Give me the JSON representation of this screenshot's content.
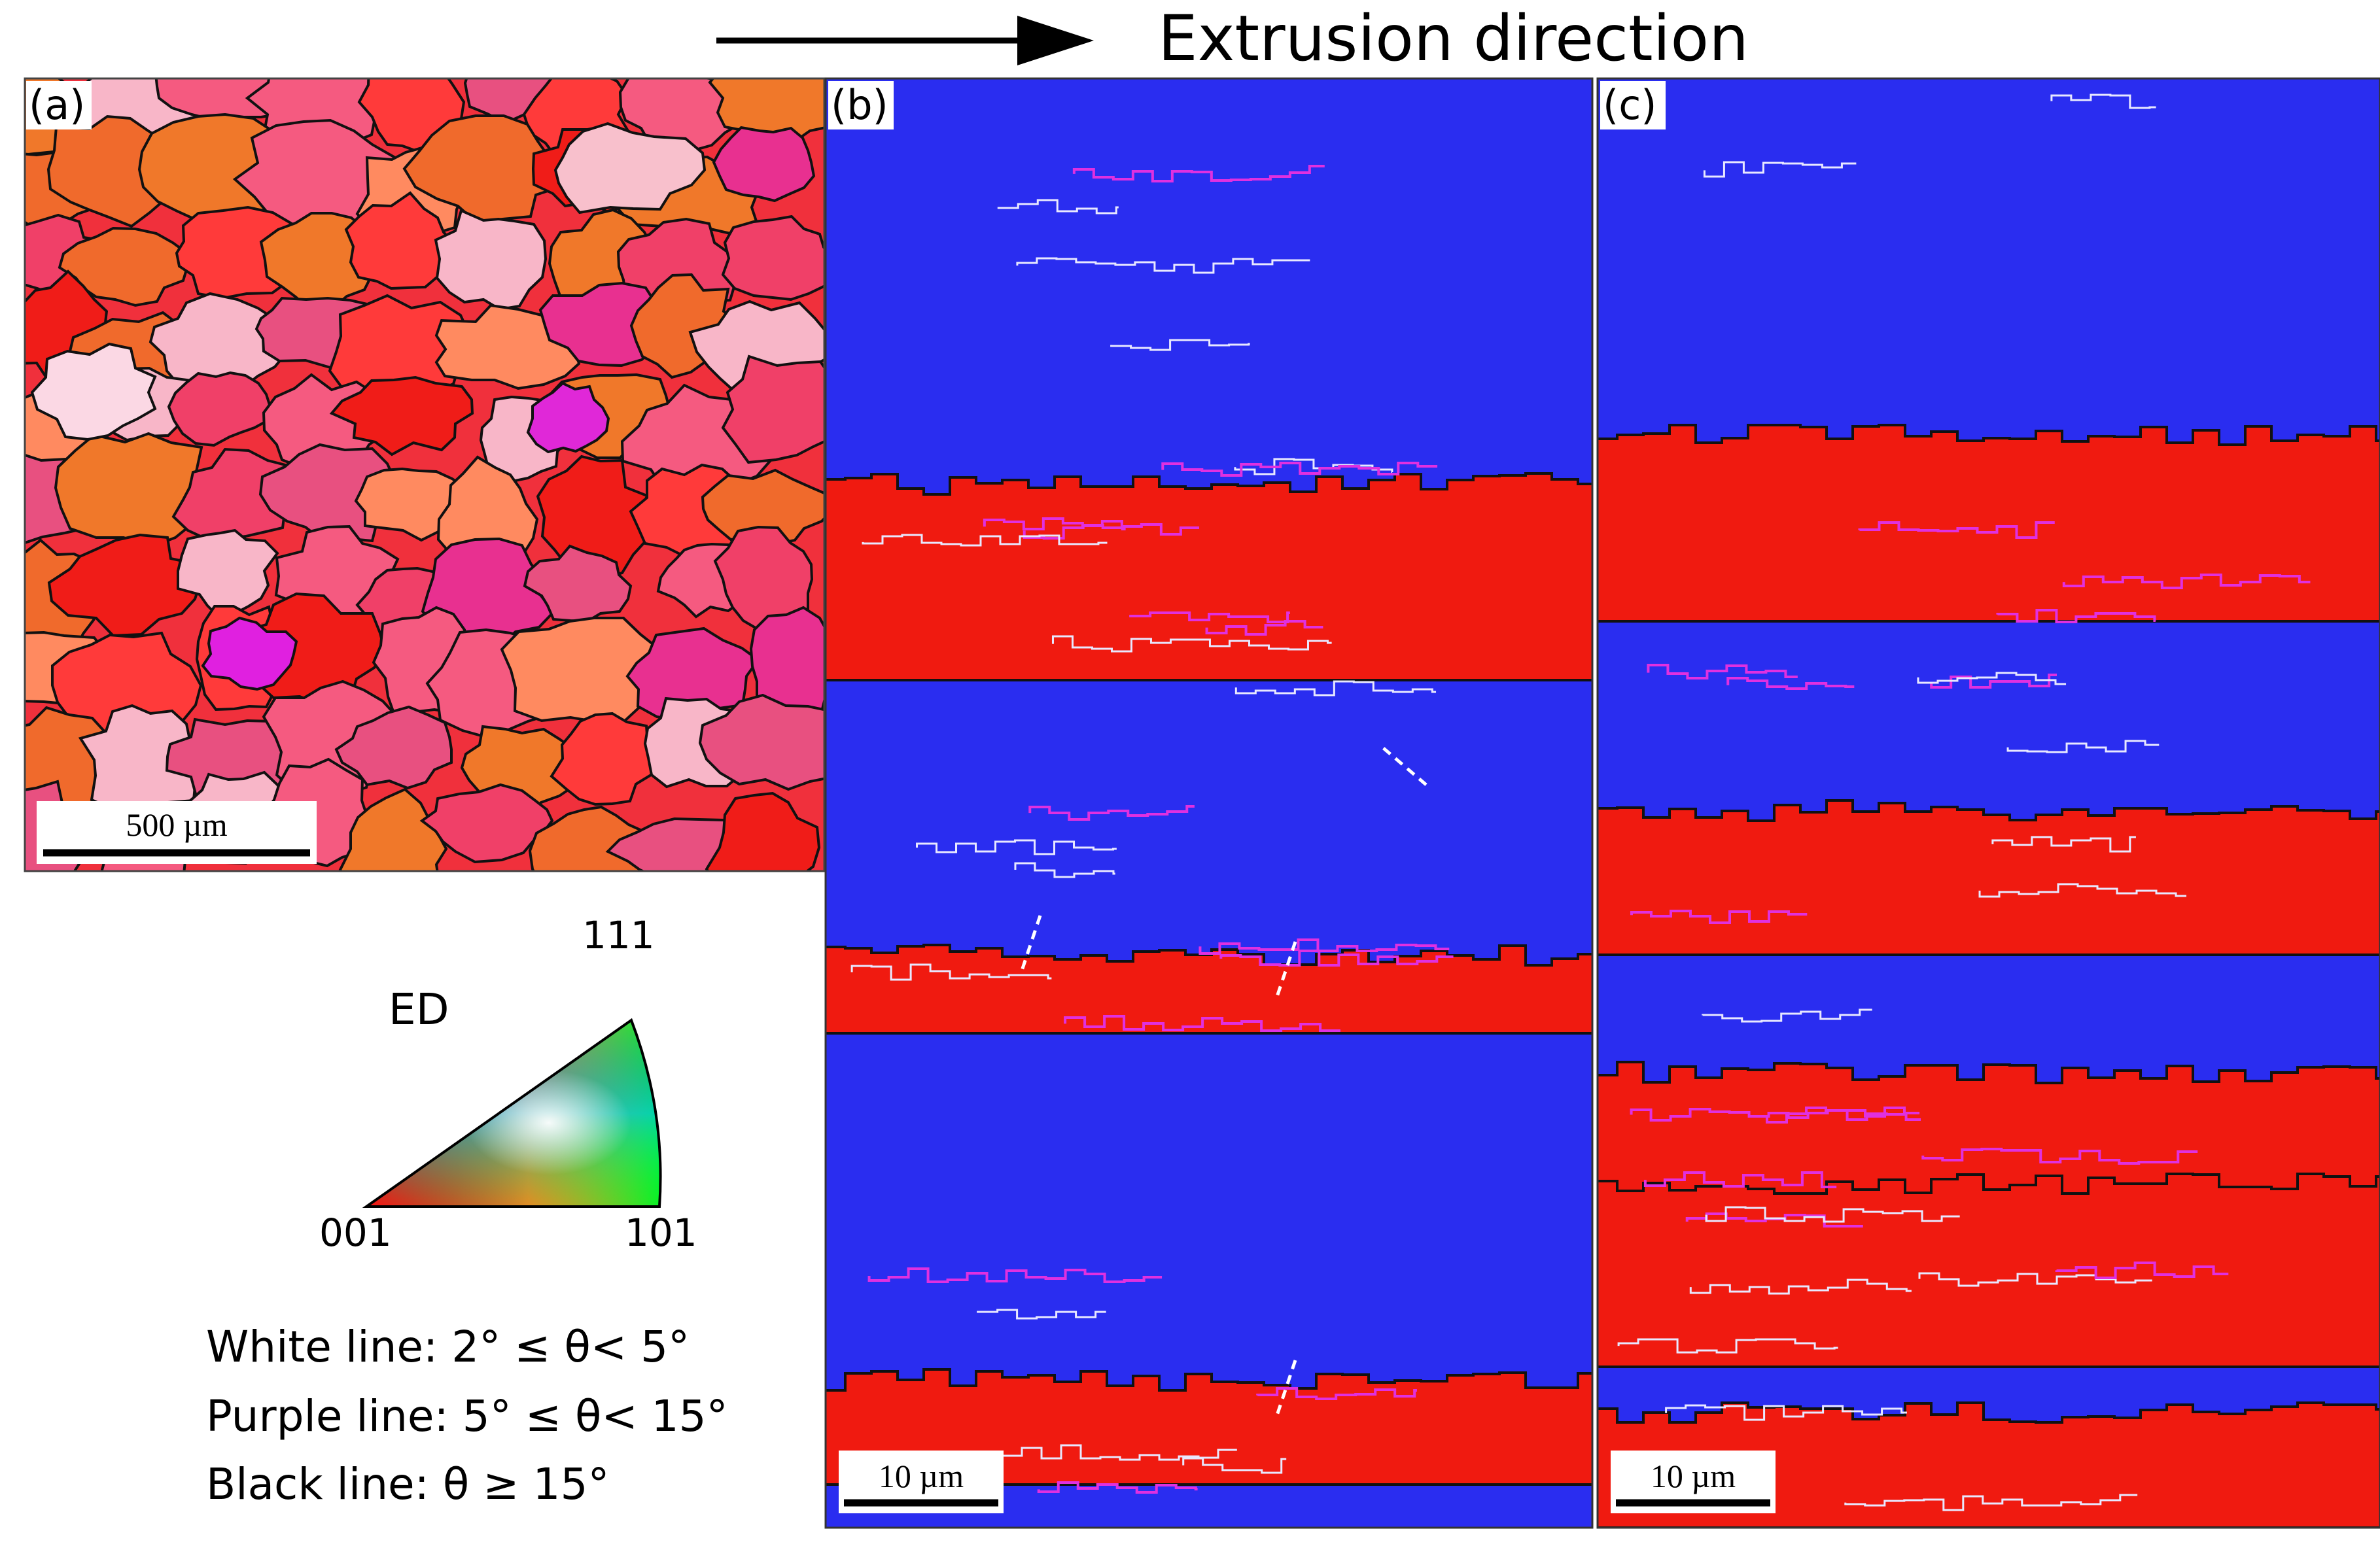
{
  "header": {
    "direction_label": "Extrusion direction"
  },
  "panels": [
    {
      "id": "a",
      "tag": "(a)",
      "scale_bar": "500 µm"
    },
    {
      "id": "b",
      "tag": "(b)",
      "scale_bar": "10 µm"
    },
    {
      "id": "c",
      "tag": "(c)",
      "scale_bar": "10 µm"
    }
  ],
  "ipf_key": {
    "axis_label": "ED",
    "corner_111": "111",
    "corner_001": "001",
    "corner_101": "101"
  },
  "legend": {
    "white_line": "White line: 2° ≤ θ< 5°",
    "purple_line": "Purple line: 5° ≤ θ< 15°",
    "black_line": "Black line: θ ≥ 15°"
  },
  "colors": {
    "blue_grain": "#2a2df0",
    "red_grain": "#f01a10",
    "pink_grain": "#f0407a",
    "orange_grain": "#f05a20",
    "purple_boundary": "#e030e0",
    "white_boundary": "#e8e8ff",
    "black_boundary": "#111111"
  }
}
